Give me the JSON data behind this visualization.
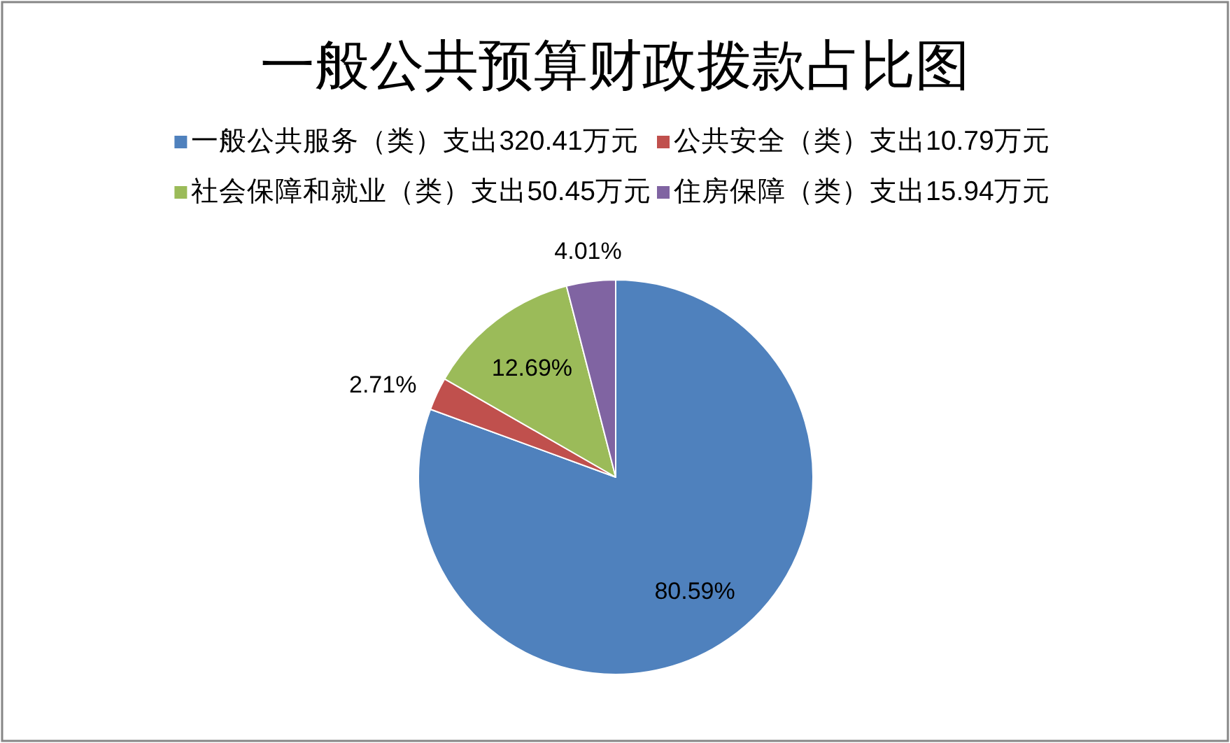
{
  "chart_data": {
    "type": "pie",
    "title": "一般公共预算财政拨款占比图",
    "categories": [
      "一般公共服务（类）支出320.41万元",
      "公共安全（类）支出10.79万元",
      "社会保障和就业（类）支出50.45万元",
      "住房保障（类）支出15.94万元"
    ],
    "values": [
      80.59,
      2.71,
      12.69,
      4.01
    ],
    "colors": [
      "#4f81bd",
      "#c0504d",
      "#9bbb59",
      "#8064a2"
    ],
    "value_labels": [
      "80.59%",
      "2.71%",
      "12.69%",
      "4.01%"
    ],
    "legend": "top"
  }
}
